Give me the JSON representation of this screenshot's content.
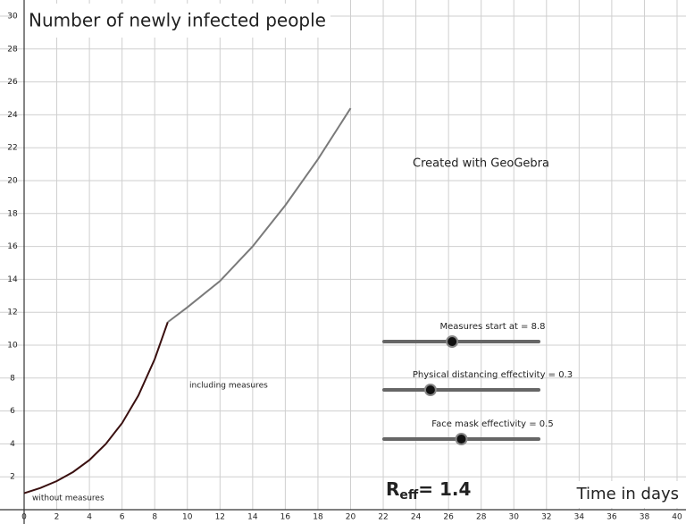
{
  "chart_data": {
    "type": "line",
    "title": "Number of newly infected people",
    "xlabel": "Time in days",
    "watermark": "Created with GeoGebra",
    "xlim": [
      0,
      40
    ],
    "ylim": [
      0,
      30
    ],
    "xticks": [
      0,
      2,
      4,
      6,
      8,
      10,
      12,
      14,
      16,
      18,
      20,
      22,
      24,
      26,
      28,
      30,
      32,
      34,
      36,
      38,
      40
    ],
    "yticks": [
      2,
      4,
      6,
      8,
      10,
      12,
      14,
      16,
      18,
      20,
      22,
      24,
      26,
      28,
      30
    ],
    "grid": true,
    "series": [
      {
        "name": "without measures",
        "color": "#3a1010",
        "x": [
          0,
          1,
          2,
          3,
          4,
          5,
          6,
          7,
          8,
          8.8
        ],
        "values": [
          1,
          1.32,
          1.74,
          2.29,
          3.02,
          3.99,
          5.26,
          6.94,
          9.15,
          11.4
        ]
      },
      {
        "name": "including measures",
        "color": "#7a7a7a",
        "x": [
          8.8,
          10,
          12,
          14,
          16,
          18,
          20
        ],
        "values": [
          11.4,
          12.3,
          13.9,
          16.0,
          18.5,
          21.3,
          24.4
        ]
      }
    ],
    "reff": {
      "symbol": "R",
      "subscript": "eff",
      "text": "= 1.4"
    },
    "sliders": [
      {
        "label": "Measures start at = 8.8",
        "value": 8.8,
        "range": [
          0,
          20
        ]
      },
      {
        "label": "Physical distancing effectivity = 0.3",
        "value": 0.3,
        "range": [
          0,
          1
        ]
      },
      {
        "label": "Face mask effectivity = 0.5",
        "value": 0.5,
        "range": [
          0,
          1
        ]
      }
    ]
  }
}
